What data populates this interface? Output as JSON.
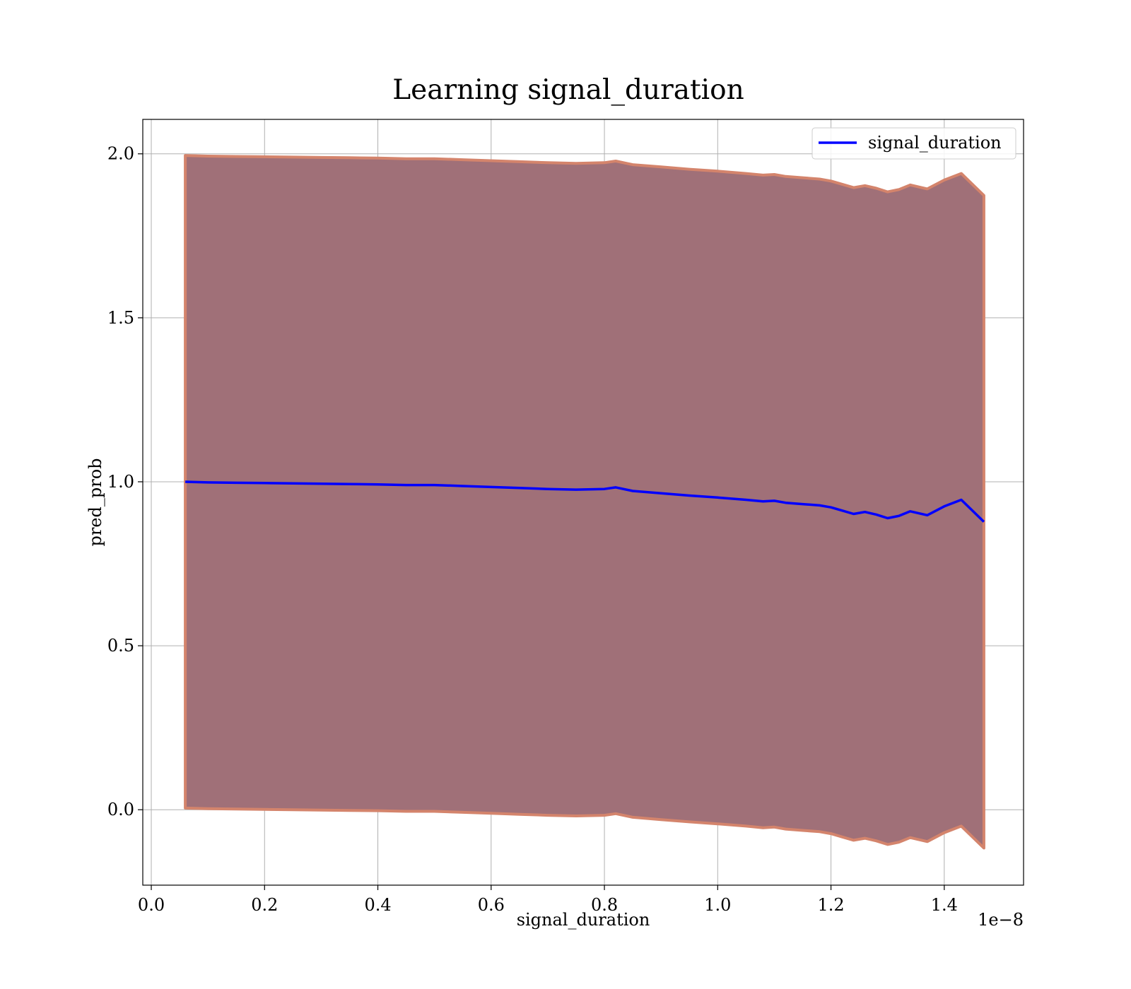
{
  "chart_data": {
    "type": "line",
    "title": "Learning signal_duration",
    "xlabel": "signal_duration",
    "ylabel": "pred_prob",
    "x_offset_label": "1e−8",
    "xlim": [
      -0.015,
      1.54
    ],
    "ylim": [
      -0.23,
      2.105
    ],
    "x_ticks": [
      0.0,
      0.2,
      0.4,
      0.6,
      0.8,
      1.0,
      1.2,
      1.4
    ],
    "x_tick_labels": [
      "0.0",
      "0.2",
      "0.4",
      "0.6",
      "0.8",
      "1.0",
      "1.2",
      "1.4"
    ],
    "y_ticks": [
      0.0,
      0.5,
      1.0,
      1.5,
      2.0
    ],
    "y_tick_labels": [
      "0.0",
      "0.5",
      "1.0",
      "1.5",
      "2.0"
    ],
    "grid": true,
    "legend_position": "top-right",
    "series": [
      {
        "name": "signal_duration",
        "color": "#0000ff",
        "x": [
          0.06,
          0.1,
          0.15,
          0.2,
          0.25,
          0.3,
          0.35,
          0.4,
          0.45,
          0.5,
          0.55,
          0.6,
          0.65,
          0.7,
          0.75,
          0.8,
          0.82,
          0.85,
          0.9,
          0.95,
          1.0,
          1.05,
          1.08,
          1.1,
          1.12,
          1.15,
          1.18,
          1.2,
          1.22,
          1.24,
          1.26,
          1.28,
          1.3,
          1.32,
          1.34,
          1.37,
          1.4,
          1.43,
          1.47
        ],
        "y": [
          1.0,
          0.998,
          0.997,
          0.996,
          0.995,
          0.994,
          0.993,
          0.992,
          0.99,
          0.99,
          0.987,
          0.984,
          0.981,
          0.978,
          0.976,
          0.978,
          0.983,
          0.972,
          0.965,
          0.958,
          0.952,
          0.945,
          0.94,
          0.942,
          0.936,
          0.932,
          0.928,
          0.922,
          0.912,
          0.902,
          0.908,
          0.9,
          0.889,
          0.896,
          0.91,
          0.898,
          0.925,
          0.945,
          0.878
        ]
      }
    ],
    "bands": [
      {
        "fill_color": "#a07078",
        "edge_color": "#d4846c",
        "x": [
          0.06,
          0.1,
          0.15,
          0.2,
          0.25,
          0.3,
          0.35,
          0.4,
          0.45,
          0.5,
          0.55,
          0.6,
          0.65,
          0.7,
          0.75,
          0.8,
          0.82,
          0.85,
          0.9,
          0.95,
          1.0,
          1.05,
          1.08,
          1.1,
          1.12,
          1.15,
          1.18,
          1.2,
          1.22,
          1.24,
          1.26,
          1.28,
          1.3,
          1.32,
          1.34,
          1.37,
          1.4,
          1.43,
          1.47
        ],
        "upper": [
          1.995,
          1.993,
          1.992,
          1.991,
          1.99,
          1.989,
          1.988,
          1.987,
          1.985,
          1.985,
          1.982,
          1.979,
          1.976,
          1.973,
          1.971,
          1.973,
          1.978,
          1.967,
          1.96,
          1.953,
          1.947,
          1.94,
          1.935,
          1.937,
          1.931,
          1.927,
          1.923,
          1.917,
          1.907,
          1.897,
          1.903,
          1.895,
          1.884,
          1.891,
          1.905,
          1.893,
          1.92,
          1.94,
          1.873
        ],
        "lower": [
          0.005,
          0.003,
          0.002,
          0.001,
          0.0,
          -0.001,
          -0.002,
          -0.003,
          -0.005,
          -0.005,
          -0.008,
          -0.011,
          -0.014,
          -0.017,
          -0.019,
          -0.017,
          -0.012,
          -0.023,
          -0.03,
          -0.037,
          -0.043,
          -0.05,
          -0.055,
          -0.053,
          -0.059,
          -0.063,
          -0.067,
          -0.073,
          -0.083,
          -0.093,
          -0.087,
          -0.095,
          -0.106,
          -0.099,
          -0.085,
          -0.097,
          -0.07,
          -0.05,
          -0.117
        ]
      }
    ]
  }
}
